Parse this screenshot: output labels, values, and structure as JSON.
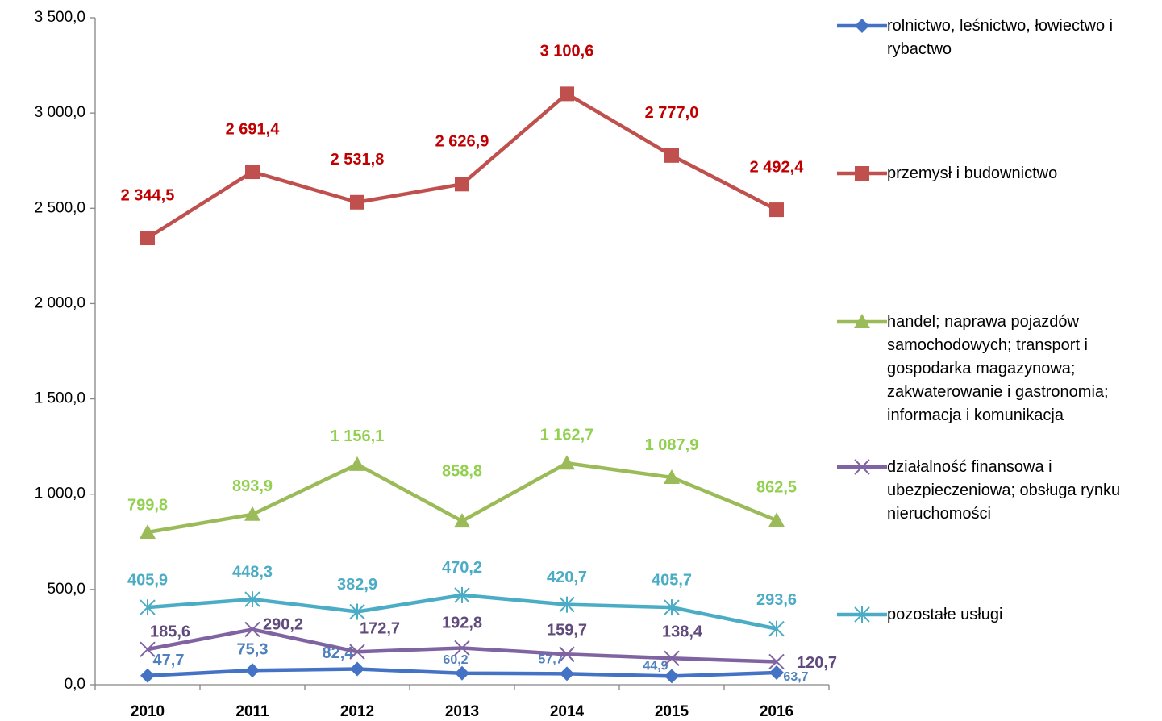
{
  "chart_data": {
    "type": "line",
    "categories": [
      "2010",
      "2011",
      "2012",
      "2013",
      "2014",
      "2015",
      "2016"
    ],
    "ylim": [
      0,
      3500
    ],
    "yticks": [
      {
        "value": 0,
        "label": "0,0"
      },
      {
        "value": 500,
        "label": "500,0"
      },
      {
        "value": 1000,
        "label": "1 000,0"
      },
      {
        "value": 1500,
        "label": "1 500,0"
      },
      {
        "value": 2000,
        "label": "2 000,0"
      },
      {
        "value": 2500,
        "label": "2 500,0"
      },
      {
        "value": 3000,
        "label": "3 000,0"
      },
      {
        "value": 3500,
        "label": "3 500,0"
      }
    ],
    "legend": "right",
    "series": [
      {
        "name": "rolnictwo, leśnictwo, łowiectwo i rybactwo",
        "color": "#4472c4",
        "label_color": "#4f81bd",
        "marker": "diamond",
        "values": [
          47.7,
          75.3,
          82.4,
          60.2,
          57.7,
          44.9,
          63.7
        ],
        "value_labels": [
          "47,7",
          "75,3",
          "82,4",
          "60,2",
          "57,7",
          "44,9",
          "63,7"
        ]
      },
      {
        "name": "przemysł i budownictwo",
        "color": "#c0504d",
        "label_color": "#c00000",
        "marker": "square",
        "values": [
          2344.5,
          2691.4,
          2531.8,
          2626.9,
          3100.6,
          2777.0,
          2492.4
        ],
        "value_labels": [
          "2 344,5",
          "2 691,4",
          "2 531,8",
          "2 626,9",
          "3 100,6",
          "2 777,0",
          "2 492,4"
        ]
      },
      {
        "name": "handel; naprawa pojazdów samochodowych; transport i gospodarka magazynowa; zakwaterowanie i gastronomia; informacja i komunikacja",
        "color": "#9bbb59",
        "label_color": "#92d050",
        "marker": "triangle",
        "values": [
          799.8,
          893.9,
          1156.1,
          858.8,
          1162.7,
          1087.9,
          862.5
        ],
        "value_labels": [
          "799,8",
          "893,9",
          "1 156,1",
          "858,8",
          "1 162,7",
          "1 087,9",
          "862,5"
        ]
      },
      {
        "name": "działalność finansowa i ubezpieczeniowa; obsługa rynku nieruchomości",
        "color": "#8064a2",
        "label_color": "#604a7b",
        "marker": "x",
        "values": [
          185.6,
          290.2,
          172.7,
          192.8,
          159.7,
          138.4,
          120.7
        ],
        "value_labels": [
          "185,6",
          "290,2",
          "172,7",
          "192,8",
          "159,7",
          "138,4",
          "120,7"
        ]
      },
      {
        "name": "pozostałe usługi",
        "color": "#4bacc6",
        "label_color": "#4bacc6",
        "marker": "star",
        "values": [
          405.9,
          448.3,
          382.9,
          470.2,
          420.7,
          405.7,
          293.6
        ],
        "value_labels": [
          "405,9",
          "448,3",
          "382,9",
          "470,2",
          "420,7",
          "405,7",
          "293,6"
        ]
      }
    ]
  }
}
